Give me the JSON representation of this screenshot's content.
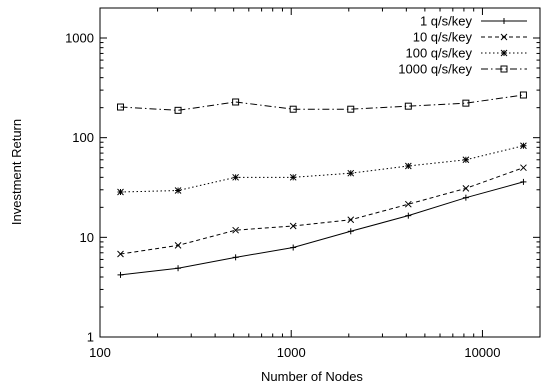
{
  "chart_data": {
    "type": "line",
    "title": "",
    "xlabel": "Number of Nodes",
    "ylabel": "Investment Return",
    "x_scale": "log",
    "y_scale": "log",
    "xlim": [
      100,
      20000
    ],
    "ylim": [
      1,
      2000
    ],
    "x_ticks": [
      100,
      1000,
      10000
    ],
    "x_tick_labels": [
      "100",
      "1000",
      "10000"
    ],
    "y_ticks": [
      1,
      10,
      100,
      1000
    ],
    "y_tick_labels": [
      "1",
      "10",
      "100",
      "1000"
    ],
    "grid": false,
    "legend_position": "top-right",
    "x": [
      128,
      256,
      512,
      1024,
      2048,
      4096,
      8192,
      16384
    ],
    "series": [
      {
        "name": "1 q/s/key",
        "values": [
          4.2,
          4.9,
          6.3,
          7.9,
          11.5,
          16.5,
          25,
          36
        ],
        "marker": "plus",
        "dash": ""
      },
      {
        "name": "10 q/s/key",
        "values": [
          6.8,
          8.3,
          11.8,
          13,
          15,
          21.5,
          31,
          50
        ],
        "marker": "x",
        "dash": "4,3"
      },
      {
        "name": "100 q/s/key",
        "values": [
          28.5,
          29.5,
          40,
          40,
          44,
          52,
          60,
          83
        ],
        "marker": "star",
        "dash": "1.5,2.5"
      },
      {
        "name": "1000 q/s/key",
        "values": [
          203,
          188,
          228,
          193,
          193,
          207,
          222,
          268
        ],
        "marker": "square",
        "dash": "7,3,1.5,3"
      }
    ]
  }
}
